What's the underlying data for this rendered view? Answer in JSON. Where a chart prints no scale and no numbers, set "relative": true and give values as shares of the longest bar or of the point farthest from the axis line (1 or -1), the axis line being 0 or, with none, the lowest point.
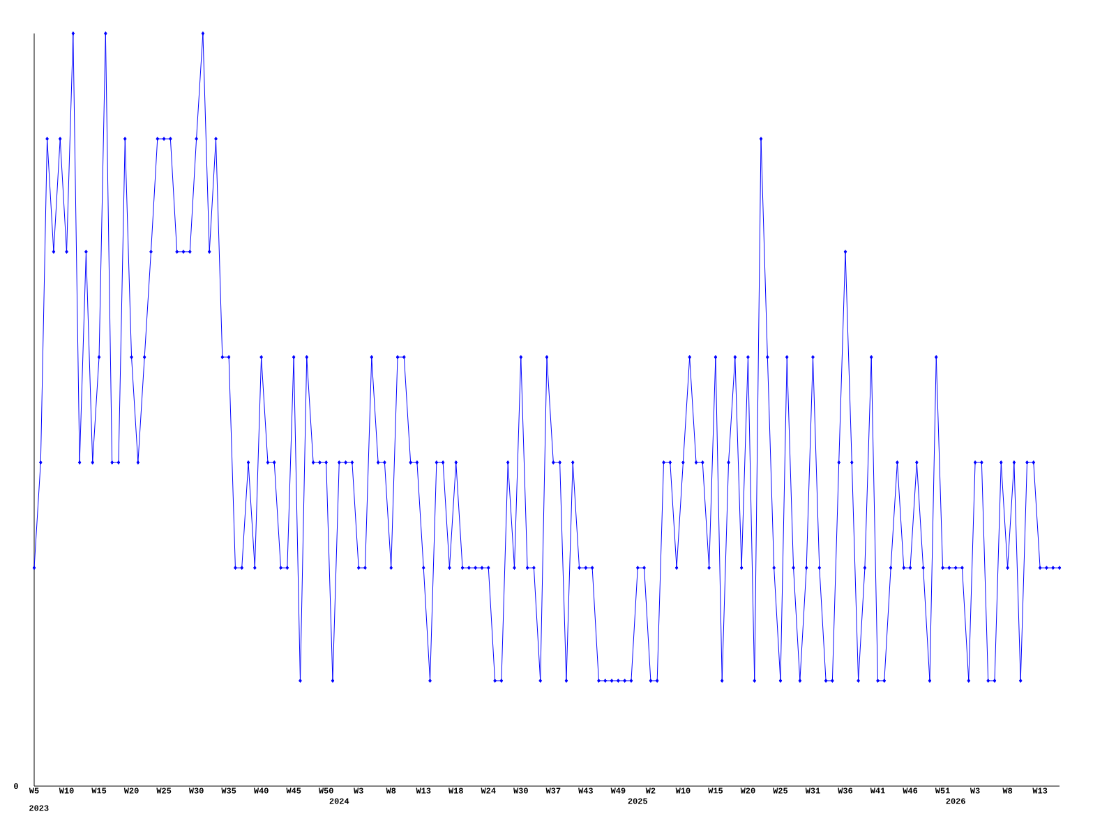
{
  "chart_data": {
    "type": "line",
    "relative": true,
    "color": "#0000ff",
    "marker": "diamond",
    "line_style": "solid",
    "grid": false,
    "categories": [
      "W5",
      null,
      null,
      null,
      null,
      "W10",
      null,
      null,
      null,
      null,
      "W15",
      null,
      null,
      null,
      null,
      "W20",
      null,
      null,
      null,
      null,
      "W25",
      null,
      null,
      null,
      null,
      "W30",
      null,
      null,
      null,
      null,
      "W35",
      null,
      null,
      null,
      null,
      "W40",
      null,
      null,
      null,
      null,
      "W45",
      null,
      null,
      null,
      null,
      "W50",
      null,
      "2024",
      null,
      null,
      "W3",
      null,
      null,
      null,
      null,
      "W8",
      null,
      null,
      null,
      null,
      "W13",
      null,
      null,
      null,
      null,
      "W18",
      null,
      null,
      null,
      null,
      "W24",
      null,
      null,
      null,
      null,
      "W30",
      null,
      null,
      null,
      null,
      "W37",
      null,
      null,
      null,
      null,
      "W43",
      null,
      null,
      null,
      null,
      "W49",
      null,
      null,
      "2025",
      null,
      "W2",
      null,
      null,
      null,
      null,
      "W10",
      null,
      null,
      null,
      null,
      "W15",
      null,
      null,
      null,
      null,
      "W20",
      null,
      null,
      null,
      null,
      "W25",
      null,
      null,
      null,
      null,
      "W31",
      null,
      null,
      null,
      null,
      "W36",
      null,
      null,
      null,
      null,
      "W41",
      null,
      null,
      null,
      null,
      "W46",
      null,
      null,
      null,
      null,
      "W51",
      null,
      "2026",
      null,
      null,
      "W3",
      null,
      null,
      null,
      null,
      "W8",
      null,
      null,
      null,
      null,
      "W13",
      null,
      null,
      null
    ],
    "values": [
      0.29,
      0.43,
      0.86,
      0.71,
      0.86,
      0.71,
      1,
      0.43,
      0.71,
      0.43,
      0.57,
      1,
      0.43,
      0.43,
      0.86,
      0.57,
      0.43,
      0.57,
      0.71,
      0.86,
      0.86,
      0.86,
      0.71,
      0.71,
      0.71,
      0.86,
      1,
      0.71,
      0.86,
      0.57,
      0.57,
      0.29,
      0.29,
      0.43,
      0.29,
      0.57,
      0.43,
      0.43,
      0.29,
      0.29,
      0.57,
      0.14,
      0.57,
      0.43,
      0.43,
      0.43,
      0.14,
      0.43,
      0.43,
      0.43,
      0.29,
      0.29,
      0.57,
      0.43,
      0.43,
      0.29,
      0.57,
      0.57,
      0.43,
      0.43,
      0.29,
      0.14,
      0.43,
      0.43,
      0.29,
      0.43,
      0.29,
      0.29,
      0.29,
      0.29,
      0.29,
      0.14,
      0.14,
      0.43,
      0.29,
      0.57,
      0.29,
      0.29,
      0.14,
      0.57,
      0.43,
      0.43,
      0.14,
      0.43,
      0.29,
      0.29,
      0.29,
      0.14,
      0.14,
      0.14,
      0.14,
      0.14,
      0.14,
      0.29,
      0.29,
      0.14,
      0.14,
      0.43,
      0.43,
      0.29,
      0.43,
      0.57,
      0.43,
      0.43,
      0.29,
      0.57,
      0.14,
      0.43,
      0.57,
      0.29,
      0.57,
      0.14,
      0.86,
      0.57,
      0.29,
      0.14,
      0.57,
      0.29,
      0.14,
      0.29,
      0.57,
      0.29,
      0.14,
      0.14,
      0.43,
      0.71,
      0.43,
      0.14,
      0.29,
      0.57,
      0.14,
      0.14,
      0.29,
      0.43,
      0.29,
      0.29,
      0.43,
      0.29,
      0.14,
      0.57,
      0.29,
      0.29,
      0.29,
      0.29,
      0.14,
      0.43,
      0.43,
      0.14,
      0.14,
      0.43,
      0.29,
      0.43,
      0.14,
      0.43,
      0.43,
      0.29,
      0.29,
      0.29,
      0.29
    ],
    "annotations": [
      "2023",
      "0"
    ]
  }
}
